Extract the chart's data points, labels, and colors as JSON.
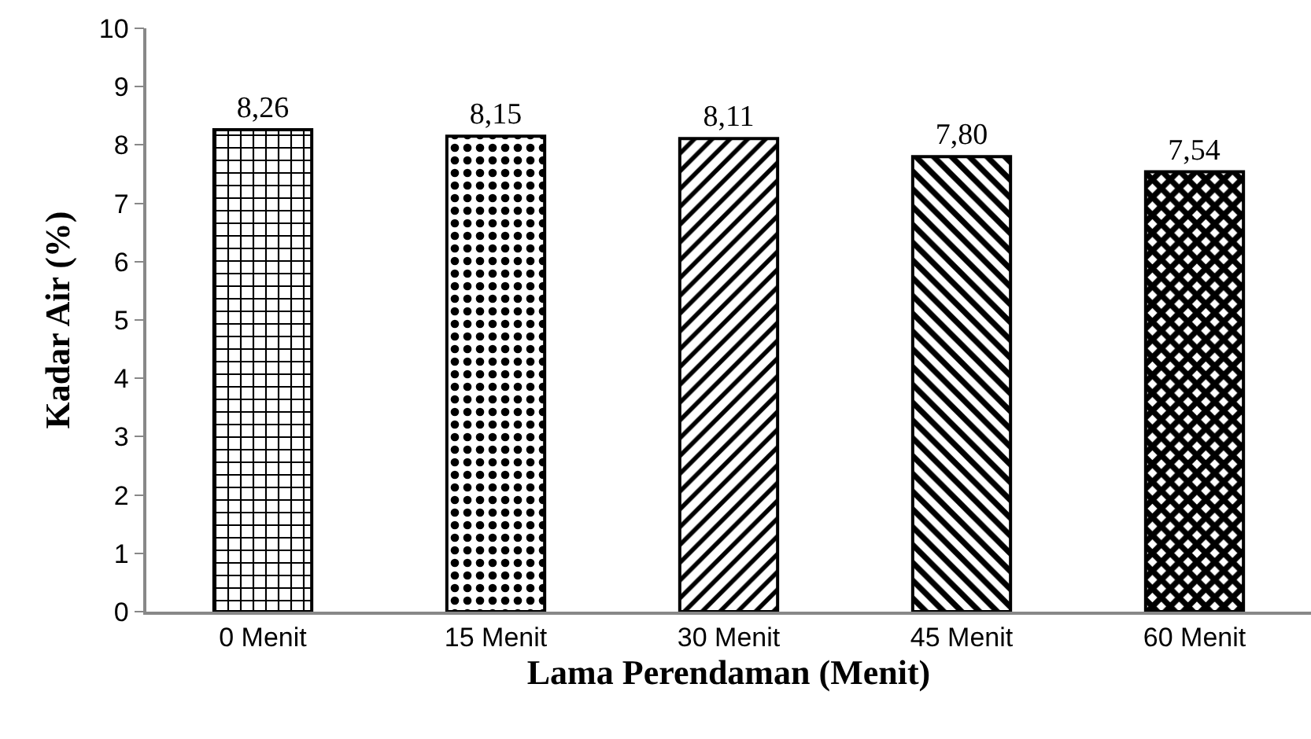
{
  "chart_data": {
    "type": "bar",
    "xlabel": "Lama Perendaman (Menit)",
    "ylabel": "Kadar Air (%)",
    "categories": [
      "0 Menit",
      "15 Menit",
      "30 Menit",
      "45 Menit",
      "60 Menit"
    ],
    "series": [
      {
        "color": "#000000",
        "values": [
          8.26,
          8.15,
          8.11,
          7.8,
          7.54
        ],
        "value_labels": [
          "8,26",
          "8,15",
          "8,11",
          "7,80",
          "7,54"
        ]
      }
    ],
    "ylim": [
      0,
      10
    ],
    "yticks": [
      0,
      1,
      2,
      3,
      4,
      5,
      6,
      7,
      8,
      9,
      10
    ],
    "grid": false,
    "legend": false
  }
}
